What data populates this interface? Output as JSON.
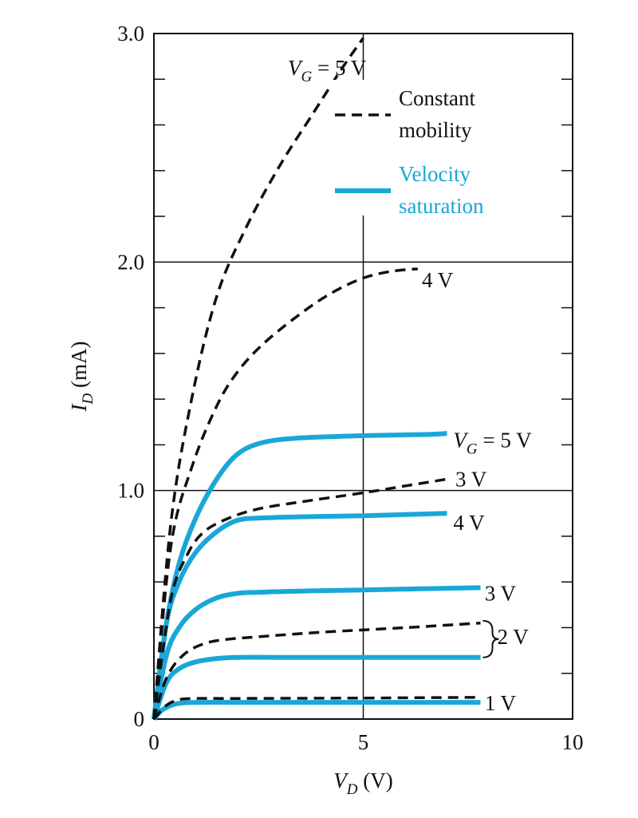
{
  "colors": {
    "constant_mobility": "#111111",
    "velocity_saturation": "#19a7d8",
    "axes": "#111111"
  },
  "chart_data": {
    "type": "line",
    "title": "",
    "xlabel": {
      "var": "V",
      "sub": "D",
      "unit": "(V)"
    },
    "ylabel": {
      "var": "I",
      "sub": "D",
      "unit": "(mA)"
    },
    "xlim": [
      0,
      10
    ],
    "ylim": [
      0,
      3.0
    ],
    "x_ticks": [
      0,
      5,
      10
    ],
    "x_tick_labels": [
      "0",
      "5",
      "10"
    ],
    "y_ticks": [
      0,
      1.0,
      2.0,
      3.0
    ],
    "y_tick_labels": [
      "0",
      "1.0",
      "2.0",
      "3.0"
    ],
    "grid": {
      "x": [
        5
      ],
      "y": [
        1.0,
        2.0
      ]
    },
    "legend": {
      "position": "top-right",
      "entries": [
        {
          "lines": [
            "Constant",
            "mobility"
          ],
          "style": "dashed",
          "color_key": "constant_mobility"
        },
        {
          "lines": [
            "Velocity",
            "saturation"
          ],
          "style": "solid",
          "color_key": "velocity_saturation"
        }
      ]
    },
    "series": [
      {
        "style": "dashed",
        "vg": 5,
        "x": [
          0,
          0.4,
          0.9,
          1.5,
          2.2,
          3.0,
          3.8,
          4.5,
          5.0
        ],
        "y": [
          0,
          0.85,
          1.4,
          1.85,
          2.15,
          2.42,
          2.65,
          2.85,
          2.98
        ]
      },
      {
        "style": "dashed",
        "vg": 4,
        "x": [
          0,
          0.4,
          0.9,
          1.5,
          2.0,
          2.6,
          3.4,
          4.2,
          5.0,
          5.7,
          6.3
        ],
        "y": [
          0,
          0.75,
          1.1,
          1.37,
          1.52,
          1.64,
          1.76,
          1.86,
          1.93,
          1.96,
          1.97
        ]
      },
      {
        "style": "dashed",
        "vg": 3,
        "x": [
          0,
          0.4,
          0.8,
          1.2,
          1.8,
          2.5,
          3.5,
          5.0,
          6.0,
          7.0
        ],
        "y": [
          0,
          0.52,
          0.72,
          0.82,
          0.88,
          0.92,
          0.95,
          0.99,
          1.02,
          1.05
        ]
      },
      {
        "style": "dashed",
        "vg": 2,
        "x": [
          0,
          0.3,
          0.7,
          1.2,
          1.8,
          2.5,
          4.0,
          6.0,
          7.8
        ],
        "y": [
          0,
          0.18,
          0.28,
          0.33,
          0.35,
          0.36,
          0.38,
          0.4,
          0.42
        ]
      },
      {
        "style": "dashed",
        "vg": 1,
        "x": [
          0,
          0.3,
          0.6,
          1.0,
          2.0,
          5.0,
          7.8
        ],
        "y": [
          0,
          0.06,
          0.085,
          0.09,
          0.09,
          0.092,
          0.095
        ]
      },
      {
        "style": "solid",
        "vg": 5,
        "x": [
          0,
          0.3,
          0.6,
          1.0,
          1.5,
          2.0,
          2.6,
          3.5,
          5.0,
          6.5,
          7.0
        ],
        "y": [
          0,
          0.42,
          0.68,
          0.88,
          1.05,
          1.16,
          1.21,
          1.23,
          1.24,
          1.245,
          1.25
        ]
      },
      {
        "style": "solid",
        "vg": 4,
        "x": [
          0,
          0.3,
          0.6,
          1.0,
          1.5,
          2.0,
          2.6,
          3.5,
          5.0,
          7.0
        ],
        "y": [
          0,
          0.42,
          0.6,
          0.73,
          0.82,
          0.87,
          0.88,
          0.885,
          0.89,
          0.9
        ]
      },
      {
        "style": "solid",
        "vg": 3,
        "x": [
          0,
          0.3,
          0.6,
          1.0,
          1.5,
          2.0,
          2.5,
          3.5,
          5.0,
          7.8
        ],
        "y": [
          0,
          0.28,
          0.4,
          0.48,
          0.53,
          0.55,
          0.555,
          0.56,
          0.565,
          0.575
        ]
      },
      {
        "style": "solid",
        "vg": 2,
        "x": [
          0,
          0.3,
          0.6,
          1.0,
          1.5,
          2.0,
          3.0,
          5.0,
          7.8
        ],
        "y": [
          0,
          0.16,
          0.22,
          0.25,
          0.265,
          0.27,
          0.27,
          0.27,
          0.27
        ]
      },
      {
        "style": "solid",
        "vg": 1,
        "x": [
          0,
          0.2,
          0.5,
          0.8,
          1.2,
          2.0,
          5.0,
          7.8
        ],
        "y": [
          0,
          0.04,
          0.065,
          0.072,
          0.073,
          0.073,
          0.073,
          0.073
        ]
      }
    ],
    "annotations": [
      {
        "var": "V",
        "sub": "G",
        "rest": " = 5 V",
        "at": [
          3.2,
          2.85
        ],
        "anchor": "start"
      },
      {
        "text": "4 V",
        "at": [
          6.4,
          1.92
        ],
        "anchor": "start"
      },
      {
        "var": "V",
        "sub": "G",
        "rest": " = 5 V",
        "at": [
          7.15,
          1.22
        ],
        "anchor": "start"
      },
      {
        "text": "3 V",
        "at": [
          7.2,
          1.05
        ],
        "anchor": "start"
      },
      {
        "text": "4 V",
        "at": [
          7.15,
          0.86
        ],
        "anchor": "start"
      },
      {
        "text": "3 V",
        "at": [
          7.9,
          0.55
        ],
        "anchor": "start"
      },
      {
        "text": "2 V",
        "at": [
          8.2,
          0.36
        ],
        "anchor": "start",
        "brace": [
          0.27,
          0.43
        ]
      },
      {
        "text": "1 V",
        "at": [
          7.9,
          0.07
        ],
        "anchor": "start"
      }
    ]
  }
}
